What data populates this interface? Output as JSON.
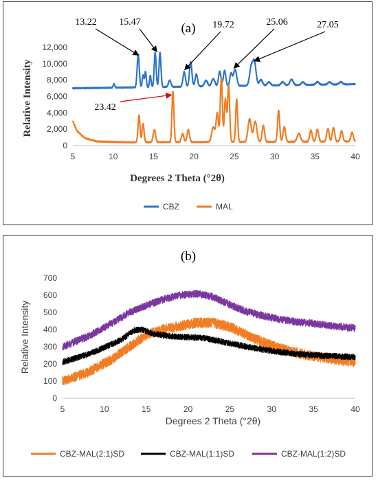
{
  "chart_data": [
    {
      "type": "line",
      "panel_label": "(a)",
      "xlabel": "Degrees 2 Theta (°2θ)",
      "ylabel": "Relative Intensity",
      "xlim": [
        5,
        40
      ],
      "ylim": [
        0,
        12000
      ],
      "xticks": [
        5,
        10,
        15,
        20,
        25,
        30,
        35,
        40
      ],
      "yticks": [
        0,
        2000,
        4000,
        6000,
        8000,
        10000,
        12000
      ],
      "ytick_labels": [
        "0",
        "2,000",
        "4,000",
        "6,000",
        "8,000",
        "10,000",
        "12,000"
      ],
      "legend_position": "bottom",
      "annotations": [
        {
          "text": "13.22",
          "x": 13.22,
          "y": 11000,
          "color": "#000000"
        },
        {
          "text": "15.47",
          "x": 15.47,
          "y": 11400,
          "color": "#000000"
        },
        {
          "text": "19.72",
          "x": 18.8,
          "y": 9200,
          "color": "#000000"
        },
        {
          "text": "25.06",
          "x": 24.9,
          "y": 9400,
          "color": "#000000"
        },
        {
          "text": "27.05",
          "x": 27.4,
          "y": 10300,
          "color": "#000000"
        },
        {
          "text": "23.42",
          "x": 17.3,
          "y": 6200,
          "color": "#e00000"
        }
      ],
      "series": [
        {
          "name": "CBZ",
          "color": "#2e75c8",
          "baseline": [
            [
              5,
              7000
            ],
            [
              40,
              7500
            ]
          ],
          "noise": 60,
          "peaks": [
            [
              10.1,
              450,
              0.1
            ],
            [
              13.1,
              4000,
              0.13
            ],
            [
              13.7,
              1500,
              0.1
            ],
            [
              14.0,
              1900,
              0.1
            ],
            [
              14.6,
              1400,
              0.1
            ],
            [
              15.2,
              4200,
              0.12
            ],
            [
              15.8,
              4200,
              0.12
            ],
            [
              17.0,
              800,
              0.15
            ],
            [
              18.8,
              1800,
              0.15
            ],
            [
              19.6,
              3000,
              0.15
            ],
            [
              20.3,
              1500,
              0.15
            ],
            [
              21.5,
              700,
              0.2
            ],
            [
              22.4,
              900,
              0.2
            ],
            [
              23.2,
              1800,
              0.15
            ],
            [
              23.8,
              1900,
              0.15
            ],
            [
              24.6,
              1500,
              0.15
            ],
            [
              25.1,
              2000,
              0.2
            ],
            [
              27.1,
              2200,
              0.2
            ],
            [
              27.5,
              2800,
              0.2
            ],
            [
              28.3,
              700,
              0.2
            ],
            [
              29.3,
              400,
              0.2
            ],
            [
              31.0,
              400,
              0.2
            ],
            [
              32.1,
              700,
              0.2
            ],
            [
              33.5,
              350,
              0.2
            ],
            [
              35.3,
              350,
              0.2
            ],
            [
              36.8,
              300,
              0.2
            ],
            [
              38.2,
              300,
              0.2
            ]
          ]
        },
        {
          "name": "MAL",
          "color": "#f07d23",
          "baseline": [
            [
              5,
              3000
            ],
            [
              5.5,
              1800
            ],
            [
              6.5,
              900
            ],
            [
              8,
              500
            ],
            [
              12,
              400
            ],
            [
              40,
              500
            ]
          ],
          "noise": 60,
          "peaks": [
            [
              13.2,
              3300,
              0.12
            ],
            [
              13.7,
              2300,
              0.12
            ],
            [
              15.1,
              1500,
              0.15
            ],
            [
              17.4,
              6200,
              0.12
            ],
            [
              18.6,
              1000,
              0.15
            ],
            [
              19.3,
              1500,
              0.15
            ],
            [
              22.4,
              1800,
              0.2
            ],
            [
              22.9,
              3500,
              0.15
            ],
            [
              23.4,
              7800,
              0.13
            ],
            [
              23.9,
              5200,
              0.13
            ],
            [
              24.3,
              6900,
              0.13
            ],
            [
              25.3,
              5200,
              0.12
            ],
            [
              26.9,
              2800,
              0.2
            ],
            [
              27.6,
              2500,
              0.2
            ],
            [
              28.6,
              2000,
              0.15
            ],
            [
              30.5,
              3800,
              0.13
            ],
            [
              31.2,
              1800,
              0.15
            ],
            [
              33.0,
              1000,
              0.2
            ],
            [
              34.5,
              1400,
              0.15
            ],
            [
              35.3,
              1500,
              0.15
            ],
            [
              36.6,
              1600,
              0.15
            ],
            [
              37.3,
              1700,
              0.15
            ],
            [
              38.3,
              1300,
              0.15
            ],
            [
              39.6,
              1100,
              0.15
            ]
          ]
        }
      ]
    },
    {
      "type": "line",
      "panel_label": "(b)",
      "xlabel": "Degrees 2 Theta (°2θ)",
      "ylabel": "Relative Intensity",
      "xlim": [
        5,
        40
      ],
      "ylim": [
        0,
        700
      ],
      "xticks": [
        5,
        10,
        15,
        20,
        25,
        30,
        35,
        40
      ],
      "yticks": [
        0,
        100,
        200,
        300,
        400,
        500,
        600,
        700
      ],
      "ytick_labels": [
        "0",
        "100",
        "200",
        "300",
        "400",
        "500",
        "600",
        "700"
      ],
      "legend_position": "bottom",
      "series": [
        {
          "name": "CBZ-MAL(2:1)SD",
          "color": "#f07d23",
          "curve": [
            [
              5,
              100
            ],
            [
              8,
              150
            ],
            [
              11,
              230
            ],
            [
              13,
              300
            ],
            [
              15,
              370
            ],
            [
              17,
              400
            ],
            [
              19,
              420
            ],
            [
              21,
              440
            ],
            [
              23,
              440
            ],
            [
              25,
              415
            ],
            [
              27,
              370
            ],
            [
              29,
              325
            ],
            [
              31,
              290
            ],
            [
              33,
              265
            ],
            [
              35,
              245
            ],
            [
              37,
              230
            ],
            [
              40,
              210
            ]
          ],
          "noise": 30
        },
        {
          "name": "CBZ-MAL(1:1)SD",
          "color": "#000000",
          "curve": [
            [
              5,
              210
            ],
            [
              8,
              255
            ],
            [
              10,
              295
            ],
            [
              12,
              340
            ],
            [
              13.5,
              395
            ],
            [
              14.5,
              400
            ],
            [
              16,
              375
            ],
            [
              18,
              360
            ],
            [
              20,
              355
            ],
            [
              22,
              350
            ],
            [
              24,
              330
            ],
            [
              27,
              300
            ],
            [
              30,
              275
            ],
            [
              33,
              258
            ],
            [
              36,
              248
            ],
            [
              40,
              240
            ]
          ],
          "noise": 18
        },
        {
          "name": "CBZ-MAL(1:2)SD",
          "color": "#7b35a0",
          "curve": [
            [
              5,
              300
            ],
            [
              8,
              360
            ],
            [
              11,
              440
            ],
            [
              13,
              500
            ],
            [
              15,
              540
            ],
            [
              17,
              575
            ],
            [
              19,
              600
            ],
            [
              21,
              610
            ],
            [
              23,
              590
            ],
            [
              25,
              545
            ],
            [
              27,
              505
            ],
            [
              29,
              480
            ],
            [
              31,
              460
            ],
            [
              33,
              445
            ],
            [
              35,
              435
            ],
            [
              37,
              422
            ],
            [
              40,
              408
            ]
          ],
          "noise": 22
        }
      ]
    }
  ]
}
